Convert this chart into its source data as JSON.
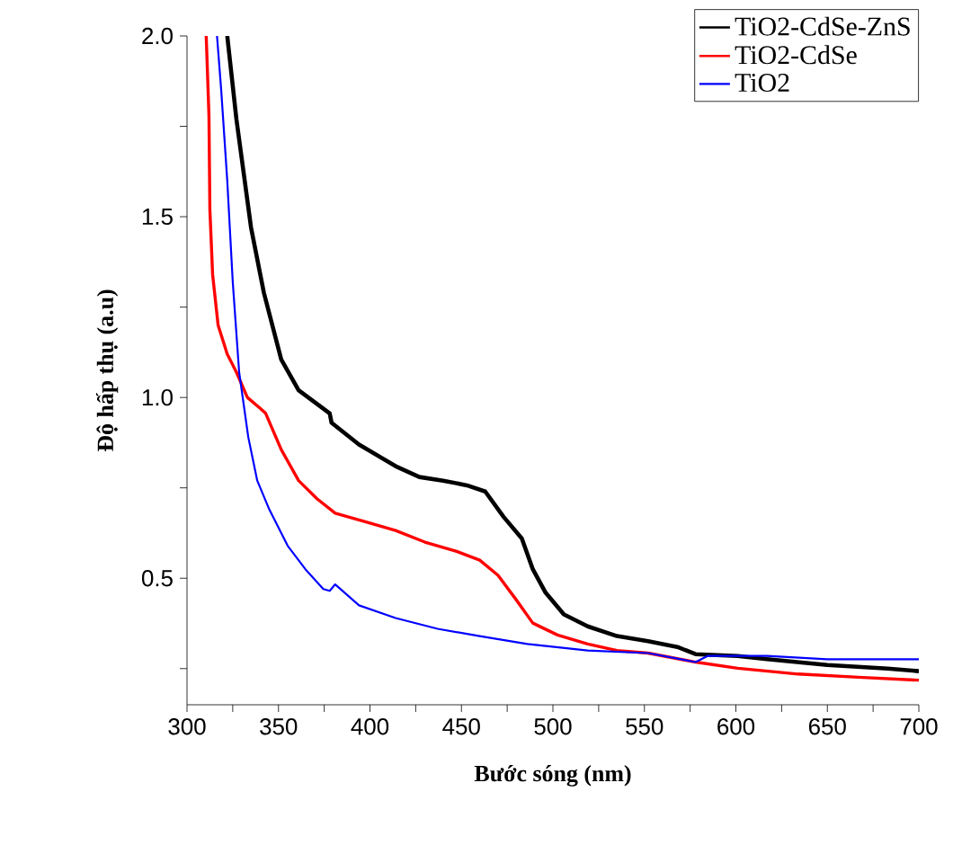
{
  "chart_data": {
    "type": "line",
    "xlabel": "Bước sóng (nm)",
    "ylabel": "Độ hấp thụ (a.u)",
    "xlim": [
      300,
      700
    ],
    "ylim": [
      0.15,
      2.0
    ],
    "xticks": [
      300,
      {
        "value": 325,
        "label": null
      },
      350,
      {
        "value": 375,
        "label": null
      },
      400,
      {
        "value": 425,
        "label": null
      },
      450,
      {
        "value": 475,
        "label": null
      },
      500,
      {
        "value": 525,
        "label": null
      },
      550,
      {
        "value": 575,
        "label": null
      },
      600,
      {
        "value": 625,
        "label": null
      },
      650,
      {
        "value": 675,
        "label": null
      },
      700
    ],
    "yticks": [
      {
        "value": 0.25,
        "label": null
      },
      0.5,
      {
        "value": 0.75,
        "label": null
      },
      {
        "value": 1.0,
        "label": "1.0"
      },
      {
        "value": 1.25,
        "label": null
      },
      1.5,
      {
        "value": 1.75,
        "label": null
      },
      {
        "value": 2.0,
        "label": "2.0"
      }
    ],
    "legend": "top right",
    "grid": false,
    "marker": "none",
    "line_style": "solid",
    "series": [
      {
        "name": "TiO2-CdSe-ZnS",
        "color": "#000000",
        "x": [
          322,
          327,
          335,
          342,
          351.5,
          361,
          378,
          379,
          394,
          414,
          427,
          440,
          453,
          463,
          473,
          483,
          489,
          496,
          506,
          519,
          535,
          552,
          568,
          578,
          601,
          617,
          650,
          683,
          700
        ],
        "values": [
          2.0,
          1.77,
          1.47,
          1.29,
          1.105,
          1.02,
          0.956,
          0.93,
          0.87,
          0.81,
          0.78,
          0.77,
          0.757,
          0.74,
          0.67,
          0.61,
          0.525,
          0.46,
          0.4,
          0.367,
          0.34,
          0.326,
          0.31,
          0.29,
          0.285,
          0.276,
          0.26,
          0.25,
          0.243
        ]
      },
      {
        "name": "TiO2-CdSe",
        "color": "#ff0000",
        "x": [
          310.5,
          312,
          312.5,
          314,
          317,
          322,
          327,
          333,
          340,
          343,
          351.5,
          361,
          371,
          381,
          397,
          414,
          430,
          447,
          460,
          470,
          480,
          489,
          502.5,
          519,
          535,
          552,
          578,
          601,
          634,
          667,
          700
        ],
        "values": [
          2.0,
          1.78,
          1.52,
          1.34,
          1.2,
          1.12,
          1.07,
          1.0,
          0.97,
          0.956,
          0.856,
          0.77,
          0.72,
          0.68,
          0.657,
          0.632,
          0.6,
          0.575,
          0.55,
          0.508,
          0.44,
          0.376,
          0.343,
          0.318,
          0.3,
          0.293,
          0.268,
          0.251,
          0.235,
          0.226,
          0.218
        ]
      },
      {
        "name": "TiO2",
        "color": "#0000ff",
        "x": [
          316.4,
          318.7,
          322,
          325,
          328.5,
          333.5,
          338.4,
          345,
          355,
          364.7,
          374.5,
          378,
          381,
          394,
          414,
          437,
          460,
          486,
          519,
          552,
          578,
          584.5,
          617,
          650,
          700
        ],
        "values": [
          2.0,
          1.85,
          1.6,
          1.32,
          1.07,
          0.89,
          0.77,
          0.69,
          0.59,
          0.525,
          0.47,
          0.465,
          0.483,
          0.425,
          0.39,
          0.36,
          0.34,
          0.318,
          0.3,
          0.293,
          0.268,
          0.285,
          0.285,
          0.276,
          0.276
        ]
      }
    ]
  }
}
